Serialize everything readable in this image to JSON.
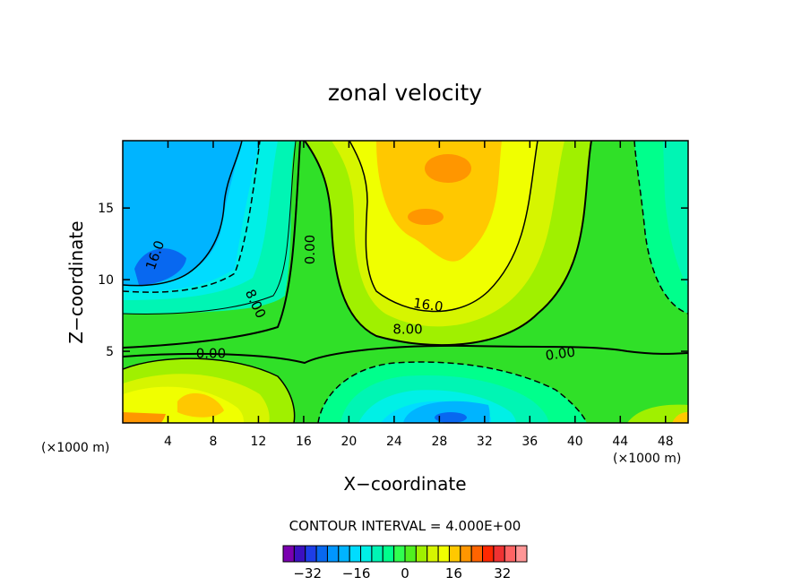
{
  "chart_data": {
    "type": "contour",
    "title": "zonal velocity",
    "xlabel": "X−coordinate",
    "ylabel": "Z−coordinate",
    "x_unit_note": "(×1000 m)",
    "y_unit_note": "(×1000 m)",
    "xlim": [
      0,
      50
    ],
    "ylim": [
      0,
      19.7
    ],
    "x_ticks": [
      4,
      8,
      12,
      16,
      20,
      24,
      28,
      32,
      36,
      40,
      44,
      48
    ],
    "y_ticks": [
      5,
      10,
      15
    ],
    "contour_interval_text": "CONTOUR INTERVAL = 4.000E+00",
    "contour_interval": 4,
    "contour_labels": [
      {
        "text": "16.0",
        "x": 2.9,
        "y": 11.7,
        "angle": -70
      },
      {
        "text": "8.00",
        "x": 11.7,
        "y": 8.3,
        "angle": 65
      },
      {
        "text": "0.00",
        "x": 16.6,
        "y": 12.1,
        "angle": -90
      },
      {
        "text": "0.00",
        "x": 7.8,
        "y": 4.8,
        "angle": 0
      },
      {
        "text": "16.0",
        "x": 27.0,
        "y": 8.2,
        "angle": 8
      },
      {
        "text": "8.00",
        "x": 25.2,
        "y": 6.5,
        "angle": 0
      },
      {
        "text": "0.00",
        "x": 38.7,
        "y": 4.8,
        "angle": -8
      }
    ],
    "colorbar": {
      "levels": [
        -36,
        -32,
        -28,
        -24,
        -20,
        -16,
        -12,
        -8,
        -4,
        0,
        4,
        8,
        12,
        16,
        20,
        24,
        28,
        32,
        36
      ],
      "colors": [
        "#7a00b0",
        "#3c10c0",
        "#1e3ee8",
        "#0868f0",
        "#0096ff",
        "#00b4ff",
        "#00dcff",
        "#00f0e6",
        "#00f5b4",
        "#00ff8c",
        "#30ff50",
        "#50f020",
        "#a0f000",
        "#d6f500",
        "#f0ff00",
        "#ffc800",
        "#ff9600",
        "#ff6400",
        "#ff2800",
        "#f03232",
        "#ff6464",
        "#ff9696"
      ],
      "tick_labels": [
        "−32",
        "−16",
        "0",
        "16",
        "32"
      ],
      "tick_values": [
        -32,
        -16,
        0,
        16,
        32
      ]
    },
    "colors": {
      "background_zero": "#30e028",
      "strong_positive": "#ff9600",
      "positive": "#ffc800",
      "weak_positive": "#f0ff00",
      "strong_negative": "#0096ff"
    }
  }
}
